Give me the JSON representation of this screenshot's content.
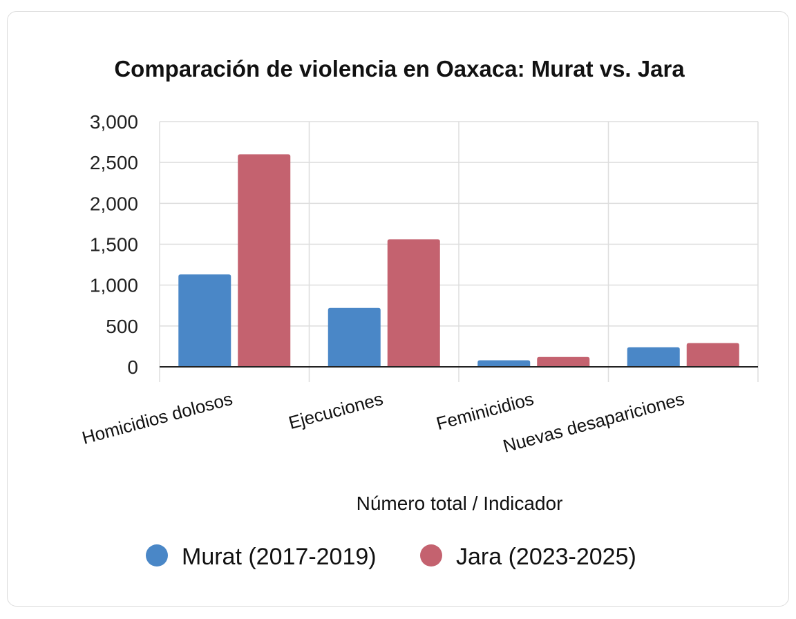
{
  "chart_data": {
    "type": "bar",
    "title": "Comparación de violencia en Oaxaca: Murat vs. Jara",
    "xlabel": "Número total / Indicador",
    "ylabel": "",
    "categories": [
      "Homicidios dolosos",
      "Ejecuciones",
      "Feminicidios",
      "Nuevas desapariciones"
    ],
    "series": [
      {
        "name": "Murat (2017-2019)",
        "color": "#4a87c7",
        "values": [
          1130,
          720,
          80,
          240
        ]
      },
      {
        "name": "Jara (2023-2025)",
        "color": "#c4626f",
        "values": [
          2600,
          1560,
          120,
          290
        ]
      }
    ],
    "ylim": [
      0,
      3000
    ],
    "yticks": [
      0,
      500,
      1000,
      1500,
      2000,
      2500,
      3000
    ],
    "ytick_labels": [
      "0",
      "500",
      "1,000",
      "1,500",
      "2,000",
      "2,500",
      "3,000"
    ],
    "grid": true,
    "legend_position": "bottom"
  }
}
